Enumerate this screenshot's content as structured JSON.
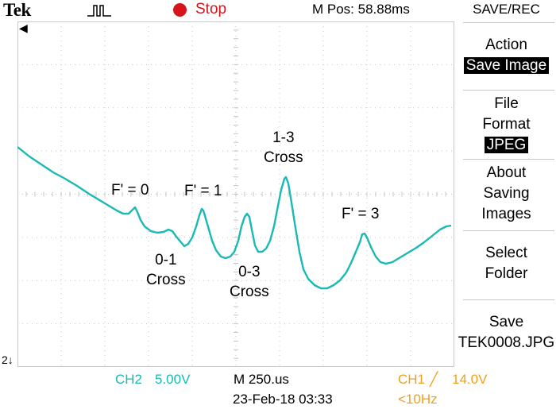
{
  "header": {
    "brand": "Tek",
    "trigger_icon": "trigger-pulse-icon",
    "run_state": "Stop",
    "m_pos": "M Pos: 58.88ms",
    "colors": {
      "run_state": "#d8141b"
    }
  },
  "waveform": {
    "trace_color": "#19b9b4",
    "grid_divisions": {
      "horizontal": 10,
      "vertical": 8
    },
    "annotations": [
      {
        "lines": [
          "F' = 0"
        ]
      },
      {
        "lines": [
          "F' = 1"
        ]
      },
      {
        "lines": [
          "1-3",
          "Cross"
        ]
      },
      {
        "lines": [
          "F' = 3"
        ]
      },
      {
        "lines": [
          "0-1",
          "Cross"
        ]
      },
      {
        "lines": [
          "0-3",
          "Cross"
        ]
      }
    ]
  },
  "side_menu": {
    "title": "SAVE/REC",
    "items": [
      {
        "line1": "Action",
        "line2": "Save Image"
      },
      {
        "line1": "File",
        "line2": "Format",
        "line3": "JPEG"
      },
      {
        "line1": "About",
        "line2": "Saving",
        "line3": "Images"
      },
      {
        "line1": "Select",
        "line2": "Folder"
      },
      {
        "line1": "Save",
        "line2": "TEK0008.JPG"
      }
    ]
  },
  "status": {
    "ch2": "CH2",
    "ch2_scale": "5.00V",
    "timebase": "M 250.us",
    "date": "23-Feb-18 03:33",
    "ch1": "CH1",
    "trigger_slope": "╱",
    "trigger_level": "14.0V",
    "frequency": "<10Hz",
    "ground_marker": "2",
    "colors": {
      "ch2": "#19b9b4",
      "ch1": "#f0a020"
    }
  }
}
